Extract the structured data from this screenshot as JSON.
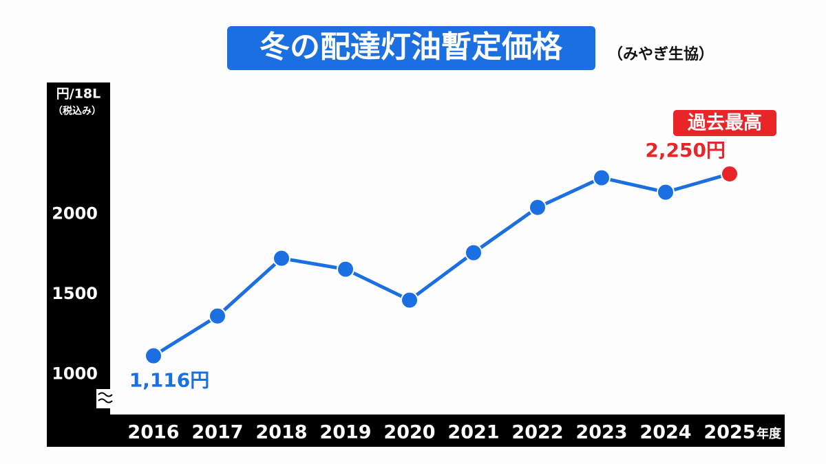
{
  "chart_data": {
    "type": "line",
    "title": "冬の配達灯油暫定価格",
    "subtitle": "（みやぎ生協）",
    "y_axis_label": "円/18L",
    "y_axis_note": "（税込み）",
    "x_axis_label": "年度",
    "annotation": "過去最高",
    "categories": [
      "2016",
      "2017",
      "2018",
      "2019",
      "2020",
      "2021",
      "2022",
      "2023",
      "2024",
      "2025"
    ],
    "series": [
      {
        "name": null,
        "color": "#1b6fe0",
        "values": [
          1116,
          1364,
          1724,
          1656,
          1463,
          1759,
          2041,
          2226,
          2136,
          2250
        ],
        "value_labels": [
          "1,116円",
          null,
          null,
          null,
          null,
          null,
          null,
          null,
          null,
          "2,250円"
        ],
        "point_colors": [
          "#1b6fe0",
          "#1b6fe0",
          "#1b6fe0",
          "#1b6fe0",
          "#1b6fe0",
          "#1b6fe0",
          "#1b6fe0",
          "#1b6fe0",
          "#1b6fe0",
          "#e8262a"
        ]
      }
    ],
    "ylim": [
      750,
      2400
    ],
    "yticks": [
      1000,
      1500,
      2000
    ],
    "grid": false
  }
}
